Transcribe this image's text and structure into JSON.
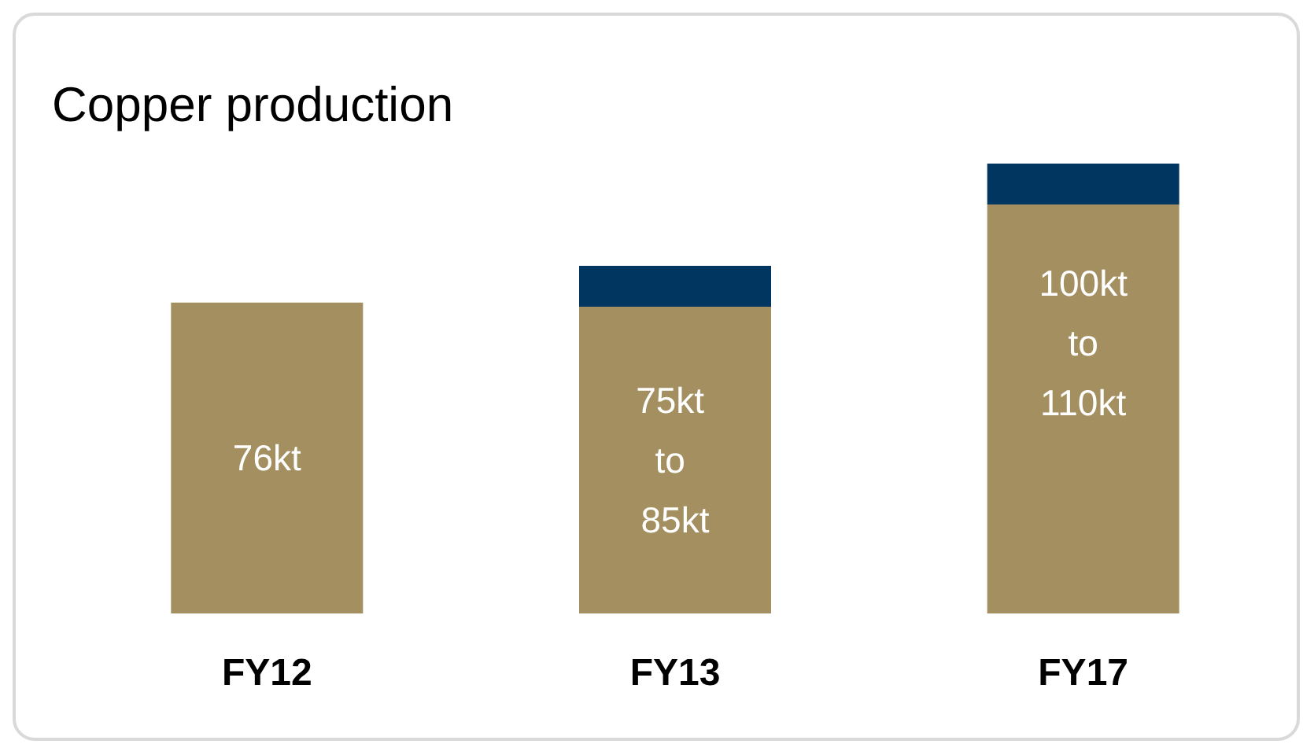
{
  "chart_data": {
    "type": "bar",
    "title": "Copper production",
    "categories": [
      "FY12",
      "FY13",
      "FY17"
    ],
    "stacked": true,
    "series": [
      {
        "color": "#a38f5f",
        "values": [
          76,
          75,
          100
        ],
        "value_labels": [
          "76kt",
          "75kt to 85kt",
          "100kt to 110kt"
        ]
      },
      {
        "color": "#003660",
        "values": [
          0,
          10,
          10
        ]
      }
    ]
  }
}
